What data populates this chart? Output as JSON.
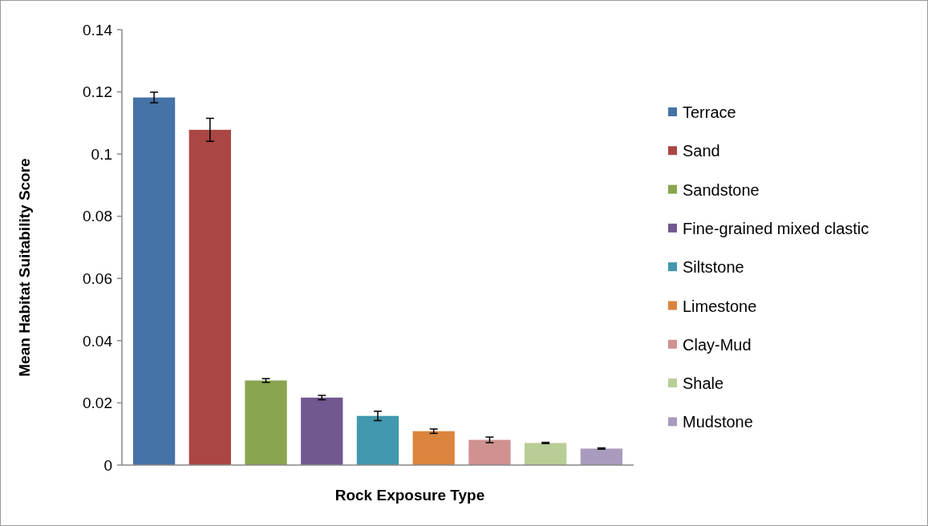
{
  "chart_data": {
    "type": "bar",
    "xlabel": "Rock Exposure Type",
    "ylabel": "Mean Habitat Suitability Score",
    "categories": [
      null,
      null,
      null,
      null,
      null,
      null,
      null,
      null,
      null
    ],
    "series": [
      {
        "name": "Terrace",
        "color": "#4572a7",
        "values": [
          0.1182,
          null,
          null,
          null,
          null,
          null,
          null,
          null,
          null
        ],
        "errors": [
          0.0017,
          null,
          null,
          null,
          null,
          null,
          null,
          null,
          null
        ]
      },
      {
        "name": "Sand",
        "color": "#aa4643",
        "values": [
          null,
          0.1078,
          null,
          null,
          null,
          null,
          null,
          null,
          null
        ],
        "errors": [
          null,
          0.0037,
          null,
          null,
          null,
          null,
          null,
          null,
          null
        ]
      },
      {
        "name": "Sandstone",
        "color": "#89a54e",
        "values": [
          null,
          null,
          0.0272,
          null,
          null,
          null,
          null,
          null,
          null
        ],
        "errors": [
          null,
          null,
          0.0006,
          null,
          null,
          null,
          null,
          null,
          null
        ]
      },
      {
        "name": "Fine-grained mixed clastic",
        "color": "#71588f",
        "values": [
          null,
          null,
          null,
          0.0217,
          null,
          null,
          null,
          null,
          null
        ],
        "errors": [
          null,
          null,
          null,
          0.0007,
          null,
          null,
          null,
          null,
          null
        ]
      },
      {
        "name": "Siltstone",
        "color": "#4198af",
        "values": [
          null,
          null,
          null,
          null,
          0.0158,
          null,
          null,
          null,
          null
        ],
        "errors": [
          null,
          null,
          null,
          null,
          0.0015,
          null,
          null,
          null,
          null
        ]
      },
      {
        "name": "Limestone",
        "color": "#db843d",
        "values": [
          null,
          null,
          null,
          null,
          null,
          0.0109,
          null,
          null,
          null
        ],
        "errors": [
          null,
          null,
          null,
          null,
          null,
          0.0007,
          null,
          null,
          null
        ]
      },
      {
        "name": "Clay-Mud",
        "color": "#d09191",
        "values": [
          null,
          null,
          null,
          null,
          null,
          null,
          0.0081,
          null,
          null
        ],
        "errors": [
          null,
          null,
          null,
          null,
          null,
          null,
          0.0009,
          null,
          null
        ]
      },
      {
        "name": "Shale",
        "color": "#b9cd96",
        "values": [
          null,
          null,
          null,
          null,
          null,
          null,
          null,
          0.0071,
          null
        ],
        "errors": [
          null,
          null,
          null,
          null,
          null,
          null,
          null,
          0.0002,
          null
        ]
      },
      {
        "name": "Mudstone",
        "color": "#a99bbd",
        "values": [
          null,
          null,
          null,
          null,
          null,
          null,
          null,
          null,
          0.0053
        ],
        "errors": [
          null,
          null,
          null,
          null,
          null,
          null,
          null,
          null,
          0.0002
        ]
      }
    ],
    "ylim": [
      0,
      0.14
    ],
    "yticks": [
      {
        "value": 0,
        "label": "0"
      },
      0.02,
      0.04,
      0.06,
      0.08,
      0.1,
      0.12,
      0.14
    ],
    "grid": false,
    "legend": "right"
  }
}
